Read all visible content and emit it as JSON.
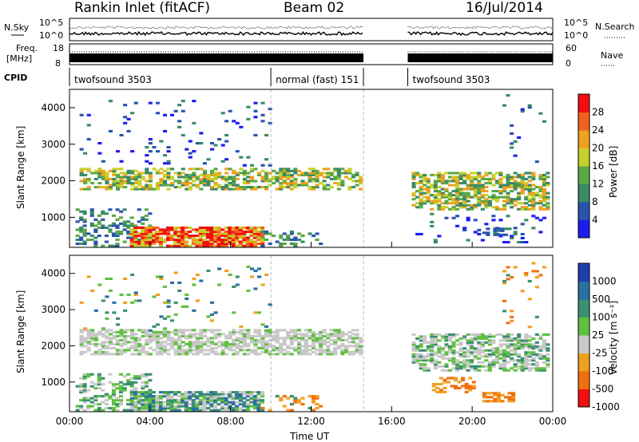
{
  "header": {
    "radar": "Rankin Inlet (fitACF)",
    "beam": "Beam 02",
    "date": "16/Jul/2014"
  },
  "side_labels": {
    "nsky": "N.Sky",
    "nsearch": "N.Search",
    "freq": "Freq.",
    "freq_unit": "[MHz]",
    "nave": "Nave",
    "cpid": "CPID"
  },
  "small_axes": {
    "sky_top": "10^5",
    "sky_bottom": "10^0",
    "search_top": "10^5",
    "search_bottom": "10^0",
    "freq_top": "18",
    "freq_bottom": "8",
    "nave_top": "60",
    "nave_bottom": "0"
  },
  "cpid_segments": [
    {
      "label": "twofsound 3503",
      "start_hour": 0
    },
    {
      "label": "normal (fast) 151",
      "start_hour": 10
    },
    {
      "label": "twofsound 3503",
      "start_hour": 16.8
    }
  ],
  "chart_data": [
    {
      "type": "heatmap",
      "name": "power",
      "ylabel": "Slant Range [km]",
      "yticks": [
        "1000",
        "2000",
        "3000",
        "4000"
      ],
      "ylim": [
        180,
        4500
      ],
      "xlim": [
        0,
        24
      ],
      "xticks": [
        "00:00",
        "04:00",
        "08:00",
        "12:00",
        "16:00",
        "20:00",
        "00:00"
      ],
      "colorbar_label": "Power [dB]",
      "colorbar_ticks": [
        "4",
        "8",
        "12",
        "16",
        "20",
        "24",
        "28"
      ],
      "colors": [
        "#1c1cf0",
        "#2a53b0",
        "#3a8a66",
        "#5aa848",
        "#c8d12c",
        "#f0a020",
        "#f06020",
        "#f01010"
      ]
    },
    {
      "type": "heatmap",
      "name": "velocity",
      "ylabel": "Slant Range [km]",
      "yticks": [
        "1000",
        "2000",
        "3000",
        "4000"
      ],
      "ylim": [
        180,
        4500
      ],
      "xlim": [
        0,
        24
      ],
      "xticks": [
        "00:00",
        "04:00",
        "08:00",
        "12:00",
        "16:00",
        "20:00",
        "00:00"
      ],
      "xlabel": "Time UT",
      "colorbar_label": "Velocity [m s⁻¹]",
      "colorbar_ticks": [
        "1000",
        "500",
        "100",
        "25",
        "-25",
        "-100",
        "-500",
        "-1000"
      ],
      "colors": [
        "#1f3fae",
        "#2a70a0",
        "#3a9070",
        "#60c040",
        "#c8c8c8",
        "#f0a020",
        "#f07010",
        "#f01010"
      ]
    }
  ],
  "colors": {
    "gap_line": "#aaaaaa",
    "axis": "#000000"
  }
}
